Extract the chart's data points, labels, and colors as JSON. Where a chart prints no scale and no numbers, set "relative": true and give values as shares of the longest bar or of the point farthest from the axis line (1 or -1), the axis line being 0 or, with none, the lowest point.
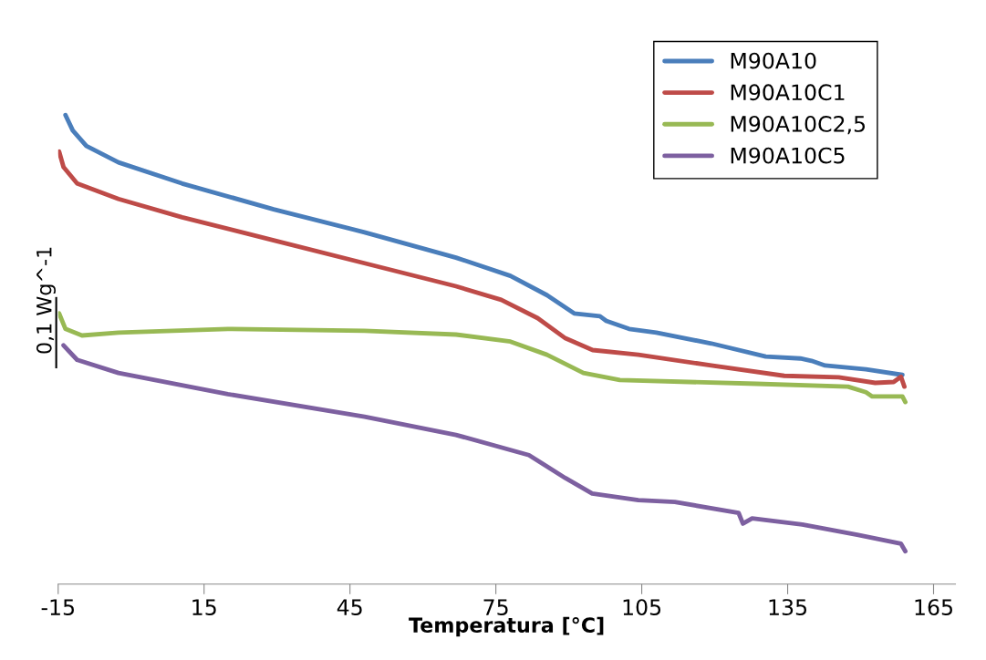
{
  "chart_data": {
    "type": "line",
    "xlabel": "Temperatura [°C]",
    "ylabel": "0,1 Wg^-1",
    "relative": true,
    "xlim": [
      -15,
      169.5
    ],
    "xticks": [
      -15,
      15,
      45,
      75,
      105,
      135,
      165
    ],
    "grid": false,
    "legend": "top right",
    "line_style": "solid",
    "marker": "none",
    "tick_labels": "x",
    "series": [
      {
        "name": "M90A10",
        "color": "#4a7ebb",
        "x": [
          -13.5,
          -12.0,
          -9.2,
          -2.6,
          10.5,
          29.3,
          48.0,
          66.8,
          78.0,
          85.5,
          91.1,
          96.4,
          97.7,
          102.4,
          108.0,
          119.3,
          130.5,
          137.6,
          139.9,
          142.7,
          151.1,
          158.6
        ],
        "values": [
          1.0,
          0.967,
          0.934,
          0.899,
          0.854,
          0.799,
          0.75,
          0.696,
          0.657,
          0.616,
          0.577,
          0.571,
          0.561,
          0.544,
          0.536,
          0.513,
          0.485,
          0.481,
          0.476,
          0.466,
          0.458,
          0.446
        ]
      },
      {
        "name": "M90A10C1",
        "color": "#be4b48",
        "x": [
          -14.8,
          -13.9,
          -11.1,
          -2.6,
          10.5,
          29.3,
          48.0,
          66.8,
          76.1,
          83.6,
          89.3,
          94.9,
          104.3,
          119.3,
          134.3,
          145.5,
          153.0,
          156.8,
          158.3,
          159.0
        ],
        "values": [
          0.922,
          0.889,
          0.854,
          0.821,
          0.782,
          0.733,
          0.684,
          0.635,
          0.606,
          0.567,
          0.524,
          0.499,
          0.489,
          0.466,
          0.444,
          0.441,
          0.429,
          0.431,
          0.442,
          0.421
        ]
      },
      {
        "name": "M90A10C2,5",
        "color": "#98b954",
        "x": [
          -14.8,
          -13.5,
          -10.1,
          -2.6,
          19.9,
          48.0,
          66.8,
          78.0,
          85.5,
          93.0,
          100.5,
          128.6,
          147.4,
          151.1,
          152.4,
          158.6,
          159.2
        ],
        "values": [
          0.577,
          0.544,
          0.53,
          0.536,
          0.544,
          0.54,
          0.532,
          0.517,
          0.489,
          0.45,
          0.435,
          0.427,
          0.421,
          0.409,
          0.4,
          0.4,
          0.388
        ]
      },
      {
        "name": "M90A10C5",
        "color": "#7d60a0",
        "x": [
          -13.9,
          -11.1,
          -2.6,
          19.9,
          48.0,
          66.8,
          81.8,
          89.3,
          94.8,
          104.3,
          111.8,
          124.9,
          125.8,
          127.7,
          138.0,
          149.3,
          158.3,
          159.2
        ],
        "values": [
          0.509,
          0.478,
          0.45,
          0.405,
          0.357,
          0.318,
          0.275,
          0.226,
          0.193,
          0.179,
          0.175,
          0.152,
          0.129,
          0.14,
          0.127,
          0.105,
          0.086,
          0.07
        ]
      }
    ]
  }
}
